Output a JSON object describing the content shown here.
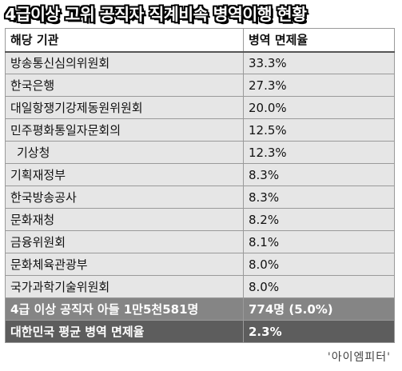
{
  "title": "4급이상 고위 공직자 직계비속 병역이행 현황",
  "table": {
    "headers": [
      "해당 기관",
      "병역 면제율"
    ],
    "rows": [
      {
        "agency": "방송통신심의위원회",
        "rate": "33.3%"
      },
      {
        "agency": "한국은행",
        "rate": "27.3%"
      },
      {
        "agency": "대일항쟁기강제동원위원회",
        "rate": "20.0%"
      },
      {
        "agency": "민주평화통일자문회의",
        "rate": "12.5%"
      },
      {
        "agency": "기상청",
        "rate": "12.3%"
      },
      {
        "agency": "기획재정부",
        "rate": "8.3%"
      },
      {
        "agency": "한국방송공사",
        "rate": "8.3%"
      },
      {
        "agency": "문화재청",
        "rate": "8.2%"
      },
      {
        "agency": "금융위원회",
        "rate": "8.1%"
      },
      {
        "agency": "문화체육관광부",
        "rate": "8.0%"
      },
      {
        "agency": "국가과학기술위원회",
        "rate": "8.0%"
      }
    ],
    "summary": [
      {
        "label": "4급 이상 공직자 아들 1만5천581명",
        "value": "774명 (5.0%)"
      },
      {
        "label": "대한민국 평균 병역 면제율",
        "value": "2.3%"
      }
    ]
  },
  "source": "'아이엠피터'"
}
